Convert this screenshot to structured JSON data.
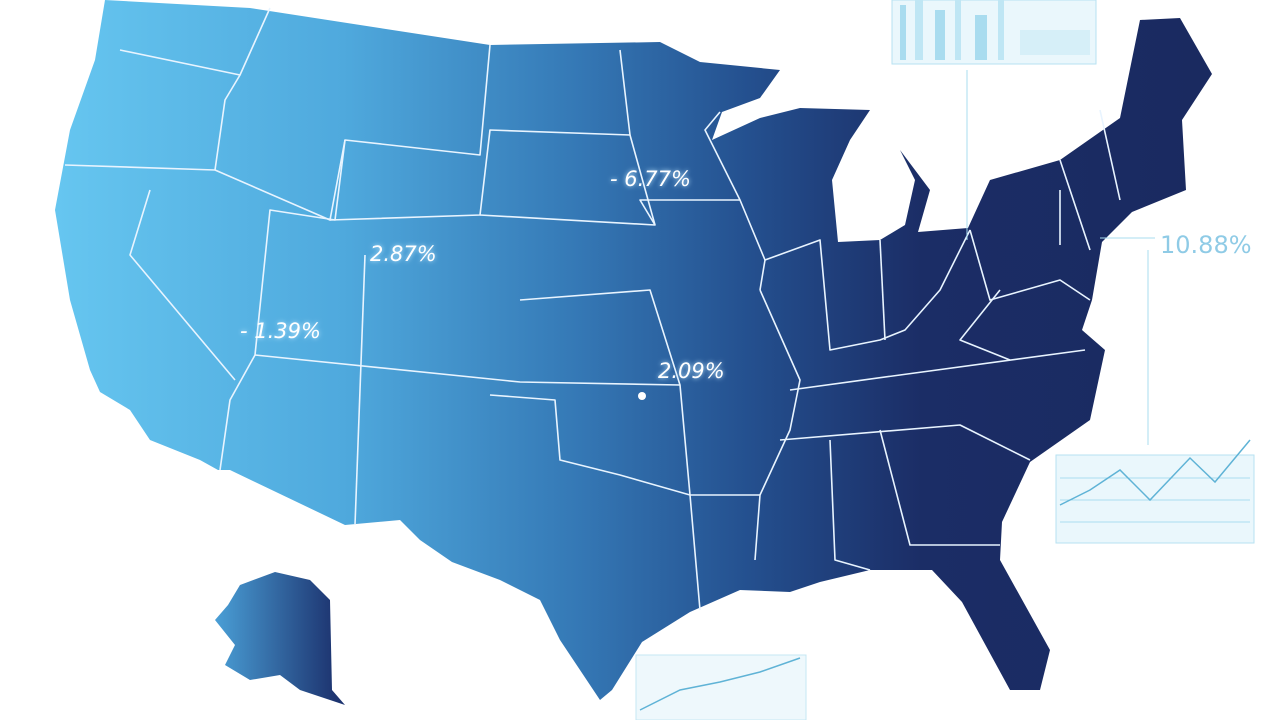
{
  "map": {
    "labels": [
      "- 6.77%",
      "2.87%",
      "- 1.39%",
      "2.09%",
      "10.88%"
    ]
  }
}
